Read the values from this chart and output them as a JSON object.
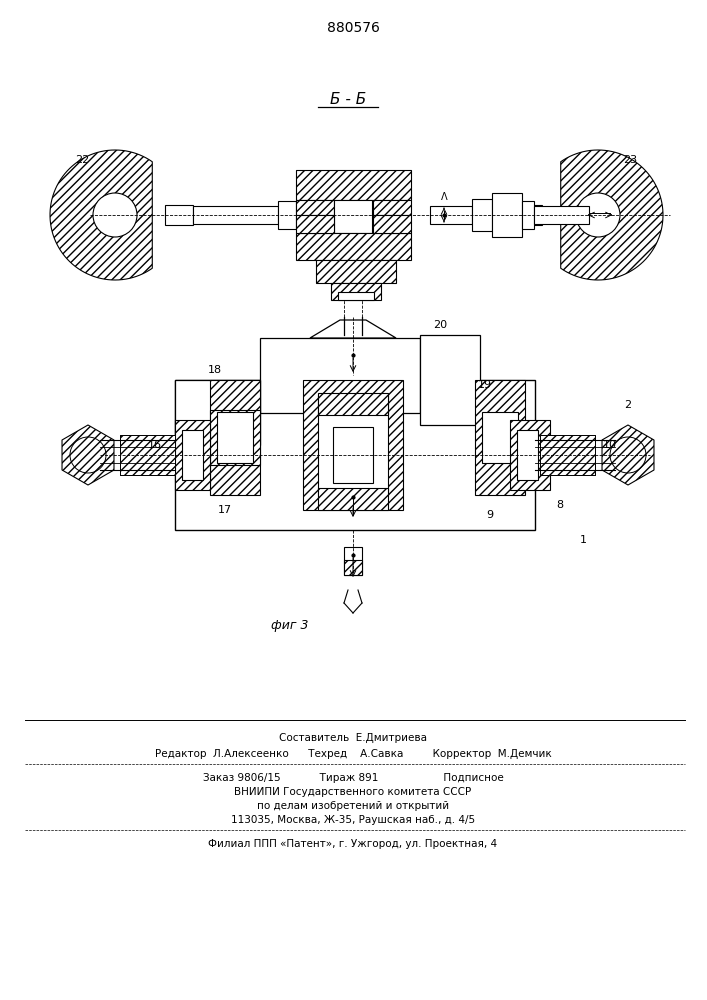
{
  "patent_number": "880576",
  "section_label": "Б - Б",
  "fig_label": "фиг 3",
  "bg_color": "#ffffff",
  "lc": "#000000"
}
